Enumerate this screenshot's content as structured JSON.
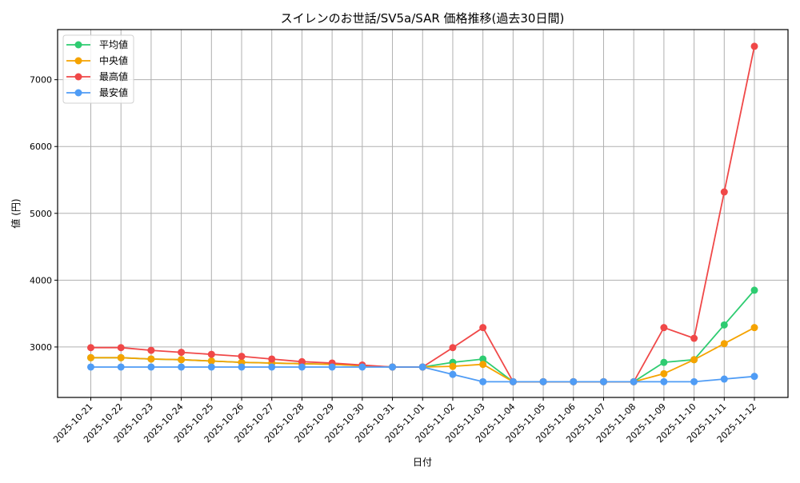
{
  "chart_data": {
    "type": "line",
    "title": "スイレンのお世話/SV5a/SAR 価格推移(過去30日間)",
    "xlabel": "日付",
    "ylabel": "値 (円)",
    "categories": [
      "2025-10-21",
      "2025-10-22",
      "2025-10-23",
      "2025-10-24",
      "2025-10-25",
      "2025-10-26",
      "2025-10-27",
      "2025-10-28",
      "2025-10-29",
      "2025-10-30",
      "2025-10-31",
      "2025-11-01",
      "2025-11-02",
      "2025-11-03",
      "2025-11-04",
      "2025-11-05",
      "2025-11-06",
      "2025-11-07",
      "2025-11-08",
      "2025-11-09",
      "2025-11-10",
      "2025-11-11",
      "2025-11-12"
    ],
    "series": [
      {
        "name": "平均値",
        "color": "#2ecc71",
        "values": [
          2840,
          2840,
          2820,
          2810,
          2790,
          2770,
          2760,
          2750,
          2740,
          2720,
          2700,
          2700,
          2770,
          2820,
          2480,
          2480,
          2480,
          2480,
          2480,
          2770,
          2810,
          3330,
          3850
        ]
      },
      {
        "name": "中央値",
        "color": "#f5a300",
        "values": [
          2840,
          2840,
          2820,
          2810,
          2790,
          2770,
          2760,
          2750,
          2740,
          2720,
          2700,
          2700,
          2710,
          2740,
          2480,
          2480,
          2480,
          2480,
          2480,
          2600,
          2810,
          3050,
          3290
        ]
      },
      {
        "name": "最高値",
        "color": "#f04848",
        "values": [
          2990,
          2990,
          2950,
          2920,
          2890,
          2860,
          2820,
          2780,
          2760,
          2730,
          2700,
          2700,
          2990,
          3290,
          2480,
          2480,
          2480,
          2480,
          2480,
          3290,
          3130,
          5320,
          7500
        ]
      },
      {
        "name": "最安値",
        "color": "#4f9cf5",
        "values": [
          2700,
          2700,
          2700,
          2700,
          2700,
          2700,
          2700,
          2700,
          2700,
          2700,
          2700,
          2700,
          2590,
          2480,
          2480,
          2480,
          2480,
          2480,
          2480,
          2480,
          2480,
          2520,
          2560
        ]
      }
    ],
    "yticks": [
      3000,
      4000,
      5000,
      6000,
      7000
    ],
    "ylim": [
      2245,
      7750
    ],
    "grid": true,
    "legend_position": "upper left"
  }
}
